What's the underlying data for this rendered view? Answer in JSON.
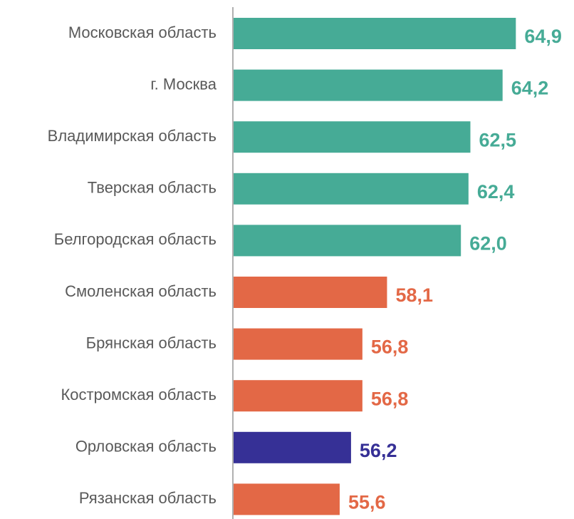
{
  "chart_data": {
    "type": "bar",
    "orientation": "horizontal",
    "categories": [
      "Московская область",
      "г. Москва",
      "Владимирская область",
      "Тверская область",
      "Белгородская область",
      "Смоленская область",
      "Брянская область",
      "Костромская область",
      "Орловская область",
      "Рязанская область"
    ],
    "values": [
      64.9,
      64.2,
      62.5,
      62.4,
      62.0,
      58.1,
      56.8,
      56.8,
      56.2,
      55.6
    ],
    "value_labels": [
      "64,9",
      "64,2",
      "62,5",
      "62,4",
      "62,0",
      "58,1",
      "56,8",
      "56,8",
      "56,2",
      "55,6"
    ],
    "colors": [
      "#46ab96",
      "#46ab96",
      "#46ab96",
      "#46ab96",
      "#46ab96",
      "#e36846",
      "#e36846",
      "#e36846",
      "#363096",
      "#e36846"
    ],
    "xlim": [
      50,
      65
    ]
  }
}
